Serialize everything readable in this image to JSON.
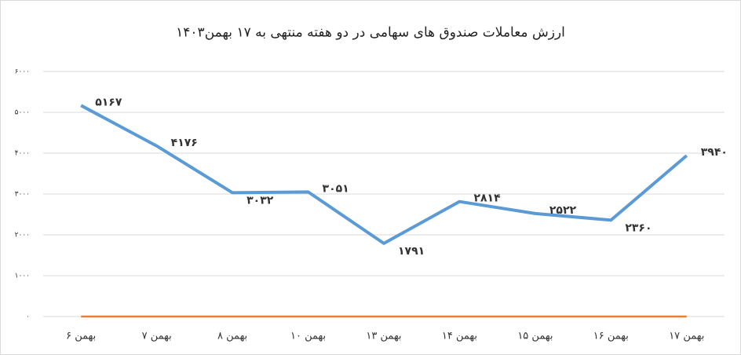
{
  "chart_data": {
    "type": "line",
    "title": "ارزش معاملات صندوق های سهامی در دو هفته منتهی به ۱۷ بهمن۱۴۰۳",
    "categories": [
      "۶ بهمن",
      "۷ بهمن",
      "۸ بهمن",
      "۱۰ بهمن",
      "۱۳ بهمن",
      "۱۴ بهمن",
      "۱۵ بهمن",
      "۱۶ بهمن",
      "۱۷ بهمن"
    ],
    "series": [
      {
        "color": "#5b9bd5",
        "values": [
          5167,
          4176,
          3032,
          3051,
          1791,
          2814,
          2522,
          2360,
          3940
        ],
        "value_labels": [
          "۵۱۶۷",
          "۴۱۷۶",
          "۳۰۳۲",
          "۳۰۵۱",
          "۱۷۹۱",
          "۲۸۱۴",
          "۲۵۲۲",
          "۲۳۶۰",
          "۳۹۴۰"
        ]
      },
      {
        "color": "#ed7d31",
        "values": [
          0,
          0,
          0,
          0,
          0,
          0,
          0,
          0,
          0
        ]
      }
    ],
    "ylim": [
      0,
      6000
    ],
    "yticks": [
      {
        "value": 0,
        "label": "۰"
      },
      {
        "value": 1000,
        "label": "۱۰۰۰"
      },
      {
        "value": 2000,
        "label": "۲۰۰۰"
      },
      {
        "value": 3000,
        "label": "۳۰۰۰"
      },
      {
        "value": 4000,
        "label": "۴۰۰۰"
      },
      {
        "value": 5000,
        "label": "۵۰۰۰"
      },
      {
        "value": 6000,
        "label": "۶۰۰۰"
      }
    ],
    "grid": true
  }
}
